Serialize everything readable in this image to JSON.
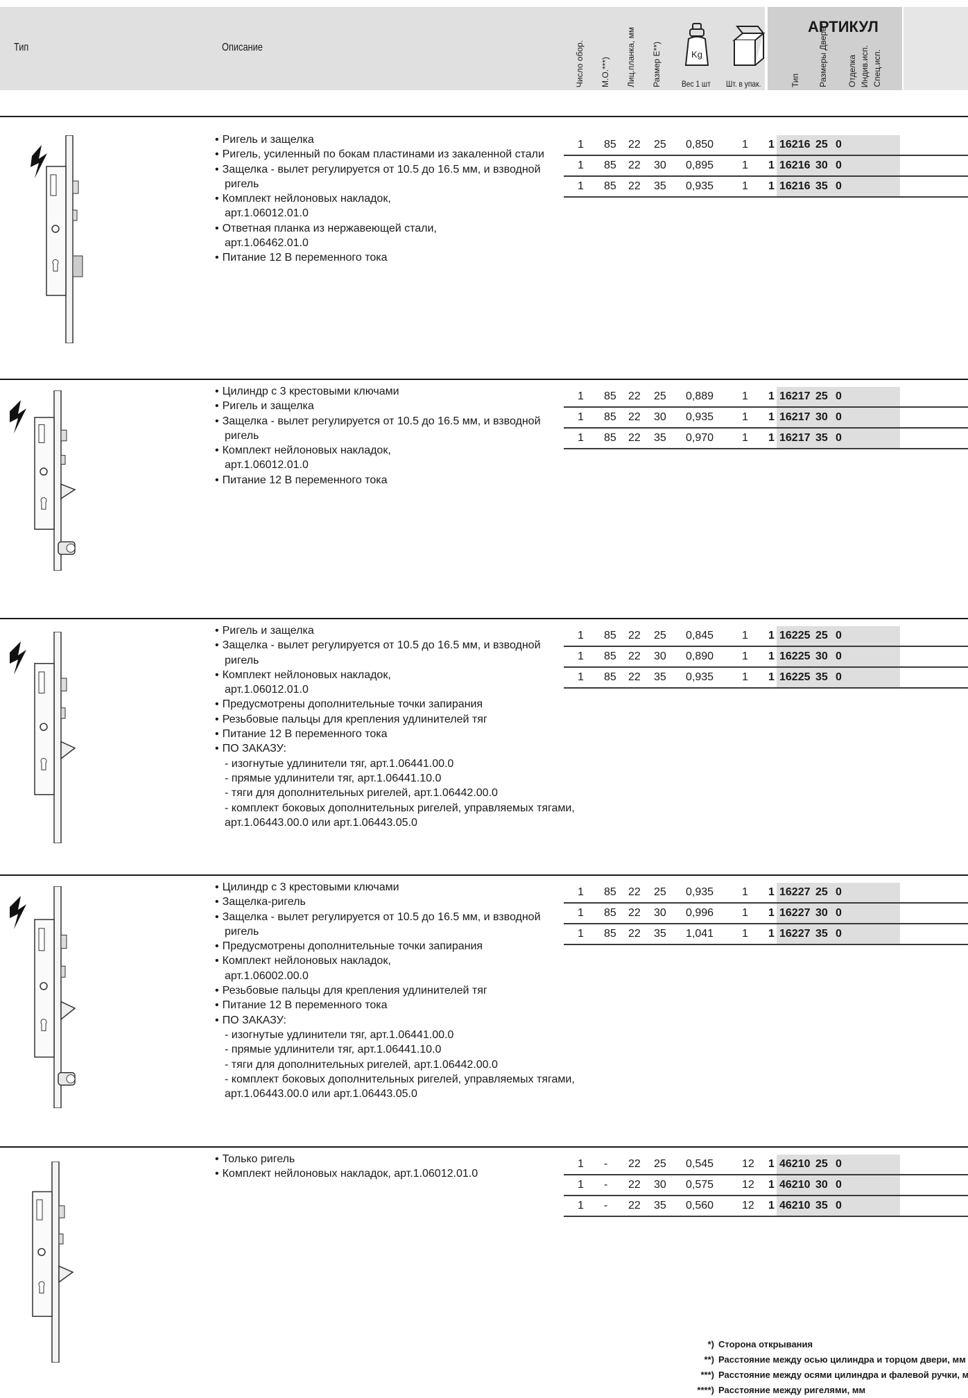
{
  "header": {
    "type_label": "Тип",
    "description_label": "Описание",
    "col_cycles": "Число обор.",
    "col_mo": "М.О.***)",
    "col_faceplate": "Лиц.планка, мм",
    "col_size": "Размер Е**)",
    "col_weight": "Вес 1 шт",
    "col_pack": "Шт. в упак.",
    "weight_icon_text": "Kg",
    "article_title": "АРТИКУЛ",
    "article_cols": [
      "Тип",
      "Размеры Дверь*)",
      "Отделка",
      "Индив.исп.",
      "Спец.исп."
    ]
  },
  "sections": [
    {
      "bullets": [
        {
          "t": "Ригель и защелка",
          "k": "bullet"
        },
        {
          "t": "Ригель, усиленный по бокам пластинами из закаленной стали",
          "k": "bullet"
        },
        {
          "t": "Защелка - вылет регулируется от 10.5 до 16.5 мм, и взводной",
          "k": "bullet"
        },
        {
          "t": "ригель",
          "k": "cont"
        },
        {
          "t": "Комплект нейлоновых накладок,",
          "k": "bullet"
        },
        {
          "t": "арт.1.06012.01.0",
          "k": "cont"
        },
        {
          "t": "Ответная планка из нержавеющей стали,",
          "k": "bullet"
        },
        {
          "t": "арт.1.06462.01.0",
          "k": "cont"
        },
        {
          "t": "Питание 12 В переменного тока",
          "k": "bullet"
        }
      ],
      "rows": [
        [
          "1",
          "85",
          "22",
          "25",
          "0,850",
          "1",
          "1",
          "16216",
          "25",
          "0"
        ],
        [
          "1",
          "85",
          "22",
          "30",
          "0,895",
          "1",
          "1",
          "16216",
          "30",
          "0"
        ],
        [
          "1",
          "85",
          "22",
          "35",
          "0,935",
          "1",
          "1",
          "16216",
          "35",
          "0"
        ]
      ]
    },
    {
      "bullets": [
        {
          "t": "Цилиндр с 3 крестовыми ключами",
          "k": "bullet"
        },
        {
          "t": "Ригель и защелка",
          "k": "bullet"
        },
        {
          "t": "Защелка - вылет регулируется от 10.5 до 16.5 мм, и взводной",
          "k": "bullet"
        },
        {
          "t": "ригель",
          "k": "cont"
        },
        {
          "t": "Комплект нейлоновых накладок,",
          "k": "bullet"
        },
        {
          "t": "арт.1.06012.01.0",
          "k": "cont"
        },
        {
          "t": "Питание 12 В переменного тока",
          "k": "bullet"
        }
      ],
      "rows": [
        [
          "1",
          "85",
          "22",
          "25",
          "0,889",
          "1",
          "1",
          "16217",
          "25",
          "0"
        ],
        [
          "1",
          "85",
          "22",
          "30",
          "0,935",
          "1",
          "1",
          "16217",
          "30",
          "0"
        ],
        [
          "1",
          "85",
          "22",
          "35",
          "0,970",
          "1",
          "1",
          "16217",
          "35",
          "0"
        ]
      ]
    },
    {
      "bullets": [
        {
          "t": "Ригель и защелка",
          "k": "bullet"
        },
        {
          "t": "Защелка - вылет регулируется от 10.5 до 16.5 мм, и взводной",
          "k": "bullet"
        },
        {
          "t": "ригель",
          "k": "cont"
        },
        {
          "t": "Комплект нейлоновых накладок,",
          "k": "bullet"
        },
        {
          "t": "арт.1.06012.01.0",
          "k": "cont"
        },
        {
          "t": "Предусмотрены дополнительные точки запирания",
          "k": "bullet"
        },
        {
          "t": "Резьбовые пальцы для крепления удлинителей тяг",
          "k": "bullet"
        },
        {
          "t": "Питание 12 В переменного тока",
          "k": "bullet"
        },
        {
          "t": "ПО ЗАКАЗУ:",
          "k": "bullet"
        },
        {
          "t": "- изогнутые удлинители тяг, арт.1.06441.00.0",
          "k": "dash"
        },
        {
          "t": "- прямые удлинители тяг, арт.1.06441.10.0",
          "k": "dash"
        },
        {
          "t": "- тяги для дополнительных ригелей, арт.1.06442.00.0",
          "k": "dash"
        },
        {
          "t": "- комплект боковых дополнительных ригелей, управляемых тягами,",
          "k": "dash"
        },
        {
          "t": "арт.1.06443.00.0 или арт.1.06443.05.0",
          "k": "cont"
        }
      ],
      "rows": [
        [
          "1",
          "85",
          "22",
          "25",
          "0,845",
          "1",
          "1",
          "16225",
          "25",
          "0"
        ],
        [
          "1",
          "85",
          "22",
          "30",
          "0,890",
          "1",
          "1",
          "16225",
          "30",
          "0"
        ],
        [
          "1",
          "85",
          "22",
          "35",
          "0,935",
          "1",
          "1",
          "16225",
          "35",
          "0"
        ]
      ]
    },
    {
      "bullets": [
        {
          "t": "Цилиндр с 3 крестовыми ключами",
          "k": "bullet"
        },
        {
          "t": "Защелка-ригель",
          "k": "bullet"
        },
        {
          "t": "Защелка - вылет регулируется от 10.5 до 16.5 мм, и взводной",
          "k": "bullet"
        },
        {
          "t": "ригель",
          "k": "cont"
        },
        {
          "t": "Предусмотрены дополнительные точки запирания",
          "k": "bullet"
        },
        {
          "t": "Комплект нейлоновых накладок,",
          "k": "bullet"
        },
        {
          "t": "арт.1.06002.00.0",
          "k": "cont"
        },
        {
          "t": "Резьбовые пальцы для крепления удлинителей тяг",
          "k": "bullet"
        },
        {
          "t": "Питание 12 В переменного тока",
          "k": "bullet"
        },
        {
          "t": "ПО ЗАКАЗУ:",
          "k": "bullet"
        },
        {
          "t": "- изогнутые удлинители тяг, арт.1.06441.00.0",
          "k": "dash"
        },
        {
          "t": "- прямые удлинители тяг, арт.1.06441.10.0",
          "k": "dash"
        },
        {
          "t": "- тяги для дополнительных ригелей, арт.1.06442.00.0",
          "k": "dash"
        },
        {
          "t": "- комплект боковых дополнительных ригелей, управляемых тягами,",
          "k": "dash"
        },
        {
          "t": "арт.1.06443.00.0 или арт.1.06443.05.0",
          "k": "cont"
        }
      ],
      "rows": [
        [
          "1",
          "85",
          "22",
          "25",
          "0,935",
          "1",
          "1",
          "16227",
          "25",
          "0"
        ],
        [
          "1",
          "85",
          "22",
          "30",
          "0,996",
          "1",
          "1",
          "16227",
          "30",
          "0"
        ],
        [
          "1",
          "85",
          "22",
          "35",
          "1,041",
          "1",
          "1",
          "16227",
          "35",
          "0"
        ]
      ]
    },
    {
      "bullets": [
        {
          "t": "Только ригель",
          "k": "bullet"
        },
        {
          "t": "Комплект нейлоновых накладок, арт.1.06012.01.0",
          "k": "bullet"
        }
      ],
      "rows": [
        [
          "1",
          "-",
          "22",
          "25",
          "0,545",
          "12",
          "1",
          "46210",
          "25",
          "0"
        ],
        [
          "1",
          "-",
          "22",
          "30",
          "0,575",
          "12",
          "1",
          "46210",
          "30",
          "0"
        ],
        [
          "1",
          "-",
          "22",
          "35",
          "0,560",
          "12",
          "1",
          "46210",
          "35",
          "0"
        ]
      ]
    }
  ],
  "footnotes": [
    {
      "k": "*)",
      "t": "Сторона открывания"
    },
    {
      "k": "**)",
      "t": "Расстояние между осью цилиндра и торцом двери, мм"
    },
    {
      "k": "***)",
      "t": "Расстояние между осями цилиндра и фалевой ручки, мм"
    },
    {
      "k": "****)",
      "t": "Расстояние между ригелями, мм"
    }
  ]
}
